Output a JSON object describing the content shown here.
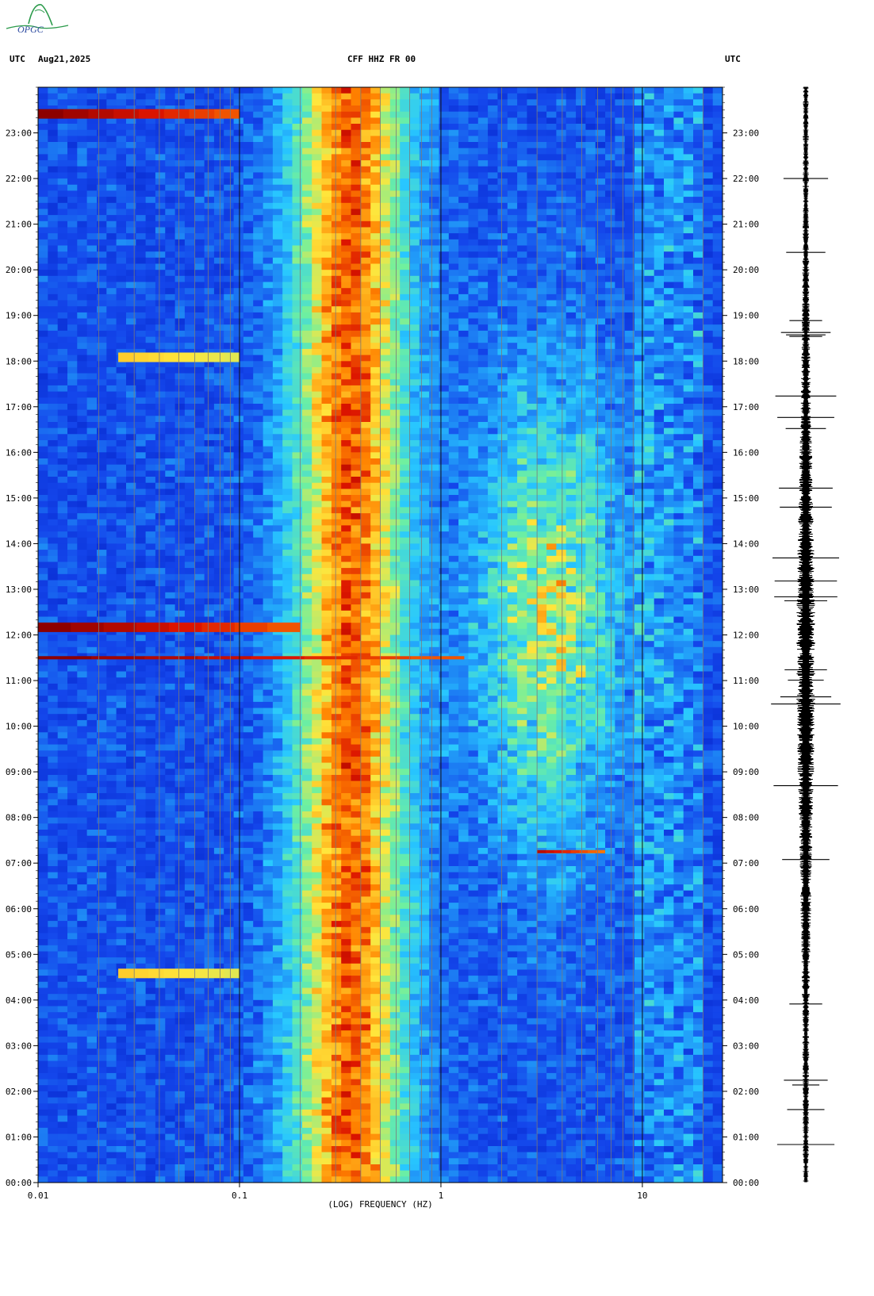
{
  "header": {
    "left_zone": "UTC",
    "date": "Aug21,2025",
    "station": "CFF HHZ FR 00",
    "right_zone": "UTC"
  },
  "logo": {
    "text": "OPGC"
  },
  "colors": {
    "background_blue": "#1040e0",
    "deep_blue": "#0020c8",
    "cyan": "#30d0ff",
    "yellow": "#ffe040",
    "orange": "#ff8000",
    "dark_red": "#8c0000"
  },
  "chart_data": {
    "type": "heatmap",
    "title": "CFF HHZ FR 00",
    "xlabel": "(LOG) FREQUENCY (HZ)",
    "x_scale": "log",
    "xlim": [
      0.01,
      25
    ],
    "x_ticks": [
      "0.01",
      "0.1",
      "1",
      "10"
    ],
    "y_ticks": [
      "00:00",
      "01:00",
      "02:00",
      "03:00",
      "04:00",
      "05:00",
      "06:00",
      "07:00",
      "08:00",
      "09:00",
      "10:00",
      "11:00",
      "12:00",
      "13:00",
      "14:00",
      "15:00",
      "16:00",
      "17:00",
      "18:00",
      "19:00",
      "20:00",
      "21:00",
      "22:00",
      "23:00"
    ],
    "y_range_hours": [
      0,
      24
    ],
    "microseism_band_hz": [
      0.18,
      0.7
    ],
    "cultural_noise_band_hz": [
      1.5,
      8
    ],
    "events": [
      {
        "time_utc": "11:30",
        "f_min": 0.01,
        "f_max": 1.3,
        "strength": 1.0
      },
      {
        "time_utc": "12:10",
        "f_min": 0.01,
        "f_max": 0.2,
        "strength": 1.0
      },
      {
        "time_utc": "23:25",
        "f_min": 0.01,
        "f_max": 0.1,
        "strength": 1.0
      },
      {
        "time_utc": "07:15",
        "f_min": 3.0,
        "f_max": 6.5,
        "strength": 0.9
      },
      {
        "time_utc": "18:05",
        "f_min": 0.025,
        "f_max": 0.1,
        "strength": 0.4
      },
      {
        "time_utc": "04:35",
        "f_min": 0.025,
        "f_max": 0.1,
        "strength": 0.4
      }
    ],
    "waveform_panel": true,
    "grid": true
  }
}
